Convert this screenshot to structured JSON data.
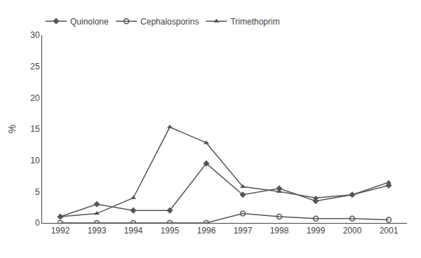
{
  "chart_data": {
    "type": "line",
    "x": [
      1992,
      1993,
      1994,
      1995,
      1996,
      1997,
      1998,
      1999,
      2000,
      2001
    ],
    "series": [
      {
        "name": "Quinolone",
        "color": "#555555",
        "marker": "diamond",
        "values": [
          1.0,
          3.0,
          2.0,
          2.0,
          9.5,
          4.5,
          5.5,
          3.5,
          4.5,
          6.0
        ]
      },
      {
        "name": "Cephalosporins",
        "color": "#555555",
        "marker": "circle-open",
        "values": [
          0.0,
          0.0,
          0.0,
          0.0,
          0.0,
          1.5,
          1.0,
          0.7,
          0.7,
          0.5
        ]
      },
      {
        "name": "Trimethoprim",
        "color": "#555555",
        "marker": "triangle-up",
        "values": [
          1.0,
          1.5,
          4.0,
          15.3,
          12.8,
          5.8,
          5.0,
          4.0,
          4.5,
          6.5
        ]
      }
    ],
    "ylabel": "%",
    "ylim": [
      0,
      30
    ],
    "yticks": [
      0,
      5,
      10,
      15,
      20,
      25,
      30
    ],
    "xlim": [
      1991.5,
      2001.5
    ],
    "xticks": [
      1992,
      1993,
      1994,
      1995,
      1996,
      1997,
      1998,
      1999,
      2000,
      2001
    ],
    "grid": false,
    "legend": "upper left"
  }
}
